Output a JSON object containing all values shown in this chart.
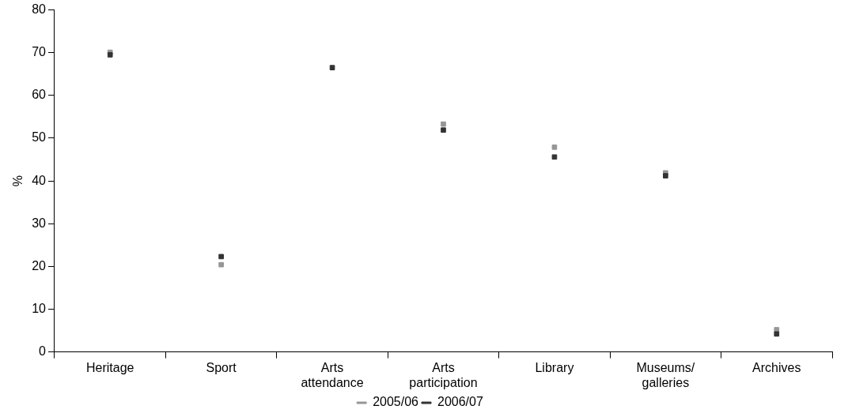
{
  "chart_data": {
    "type": "scatter",
    "ylabel": "%",
    "categories": [
      "Heritage",
      "Sport",
      "Arts attendance",
      "Arts participation",
      "Library",
      "Museums/ galleries",
      "Archives"
    ],
    "series": [
      {
        "name": "2005/06",
        "color": "#969696",
        "values": [
          70.1,
          20.4,
          null,
          53.3,
          47.9,
          41.9,
          5.2
        ]
      },
      {
        "name": "2006/07",
        "color": "#333333",
        "values": [
          69.5,
          22.3,
          66.5,
          51.9,
          45.6,
          41.2,
          4.2
        ]
      }
    ],
    "ylim": [
      0,
      80
    ],
    "yticks": [
      0,
      10,
      20,
      30,
      40,
      50,
      60,
      70,
      80
    ],
    "grid": false,
    "legend": "bottom",
    "marker": "square"
  }
}
